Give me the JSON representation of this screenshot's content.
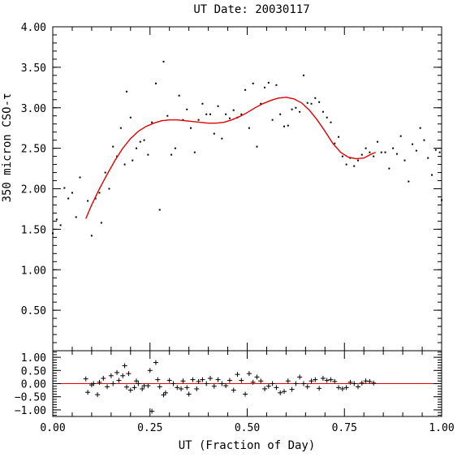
{
  "chart_data": [
    {
      "type": "scatter",
      "title": "UT Date: 20030117",
      "xlabel": "",
      "ylabel": "350 micron CSO-τ",
      "xlim": [
        0.0,
        1.0
      ],
      "ylim": [
        0.0,
        4.0
      ],
      "x_ticks": [
        "0.00",
        "0.25",
        "0.50",
        "0.75",
        "1.00"
      ],
      "y_ticks": [
        "0.50",
        "1.00",
        "1.50",
        "2.00",
        "2.50",
        "3.00",
        "3.50",
        "4.00"
      ],
      "grid": false,
      "colors": {
        "points": "#000000",
        "fit": "#e00000"
      },
      "series": [
        {
          "marker": "dot",
          "x": [
            0.0,
            0.01,
            0.02,
            0.03,
            0.04,
            0.05,
            0.06,
            0.07,
            0.09,
            0.1,
            0.11,
            0.12,
            0.125,
            0.135,
            0.145,
            0.155,
            0.165,
            0.175,
            0.185,
            0.19,
            0.2,
            0.205,
            0.215,
            0.225,
            0.235,
            0.245,
            0.255,
            0.265,
            0.275,
            0.285,
            0.295,
            0.305,
            0.315,
            0.325,
            0.335,
            0.345,
            0.355,
            0.365,
            0.375,
            0.385,
            0.395,
            0.405,
            0.415,
            0.425,
            0.435,
            0.445,
            0.455,
            0.465,
            0.475,
            0.485,
            0.495,
            0.505,
            0.515,
            0.525,
            0.535,
            0.545,
            0.555,
            0.565,
            0.575,
            0.585,
            0.595,
            0.605,
            0.615,
            0.625,
            0.635,
            0.645,
            0.655,
            0.665,
            0.675,
            0.685,
            0.695,
            0.705,
            0.715,
            0.725,
            0.735,
            0.745,
            0.755,
            0.765,
            0.775,
            0.785,
            0.795,
            0.805,
            0.815,
            0.825,
            0.835,
            0.845,
            0.855,
            0.865,
            0.875,
            0.885,
            0.895,
            0.905,
            0.915,
            0.925,
            0.935,
            0.945,
            0.955,
            0.965,
            0.975,
            0.985,
            0.995,
            1.0
          ],
          "y": [
            1.45,
            1.62,
            1.55,
            2.01,
            1.88,
            1.95,
            1.65,
            2.14,
            1.85,
            1.42,
            1.88,
            1.95,
            1.58,
            2.2,
            2.0,
            2.52,
            2.4,
            2.75,
            2.3,
            3.2,
            2.88,
            2.35,
            2.5,
            2.58,
            2.6,
            2.42,
            2.82,
            3.3,
            1.74,
            3.57,
            2.9,
            2.42,
            2.5,
            3.15,
            2.85,
            2.98,
            2.75,
            2.45,
            2.85,
            3.05,
            2.92,
            2.92,
            2.68,
            3.02,
            2.62,
            2.92,
            2.87,
            2.97,
            2.88,
            2.92,
            3.22,
            2.75,
            3.3,
            2.52,
            3.05,
            3.25,
            3.31,
            2.85,
            3.28,
            2.92,
            2.77,
            2.78,
            2.98,
            3.0,
            2.95,
            3.4,
            3.06,
            3.05,
            3.12,
            3.07,
            2.95,
            2.88,
            2.82,
            2.56,
            2.64,
            2.4,
            2.3,
            2.38,
            2.28,
            2.35,
            2.42,
            2.5,
            2.45,
            2.4,
            2.58,
            2.45,
            2.45,
            2.25,
            2.5,
            2.43,
            2.65,
            2.35,
            2.09,
            2.55,
            2.47,
            2.75,
            2.6,
            2.38,
            2.17,
            2.48,
            2.45,
            1.86
          ]
        },
        {
          "marker": "line",
          "x": [
            0.085,
            0.1,
            0.12,
            0.14,
            0.16,
            0.18,
            0.2,
            0.22,
            0.24,
            0.26,
            0.28,
            0.3,
            0.32,
            0.34,
            0.36,
            0.38,
            0.4,
            0.42,
            0.44,
            0.46,
            0.48,
            0.5,
            0.52,
            0.54,
            0.56,
            0.58,
            0.6,
            0.62,
            0.64,
            0.66,
            0.68,
            0.7,
            0.72,
            0.74,
            0.76,
            0.78,
            0.8,
            0.82,
            0.83
          ],
          "y": [
            1.63,
            1.8,
            2.0,
            2.18,
            2.35,
            2.5,
            2.62,
            2.71,
            2.77,
            2.81,
            2.84,
            2.85,
            2.85,
            2.84,
            2.83,
            2.82,
            2.81,
            2.81,
            2.82,
            2.85,
            2.89,
            2.94,
            3.0,
            3.05,
            3.09,
            3.12,
            3.13,
            3.11,
            3.06,
            2.97,
            2.85,
            2.71,
            2.56,
            2.45,
            2.39,
            2.37,
            2.38,
            2.43,
            2.45
          ]
        }
      ]
    },
    {
      "type": "scatter",
      "title": "",
      "xlabel": "UT (Fraction of Day)",
      "ylabel": "",
      "xlim": [
        0.0,
        1.0
      ],
      "ylim": [
        -1.25,
        1.25
      ],
      "x_ticks": [
        "0.00",
        "0.25",
        "0.50",
        "0.75",
        "1.00"
      ],
      "y_ticks": [
        "1.00",
        "0.50",
        "0.00",
        "−0.50",
        "−1.00"
      ],
      "grid": false,
      "colors": {
        "points": "#000000",
        "zero_line": "#e00000"
      },
      "reference_line_y": 0.0,
      "series": [
        {
          "marker": "plus",
          "x": [
            0.085,
            0.09,
            0.1,
            0.105,
            0.115,
            0.12,
            0.13,
            0.14,
            0.15,
            0.155,
            0.165,
            0.17,
            0.18,
            0.185,
            0.19,
            0.195,
            0.2,
            0.21,
            0.215,
            0.22,
            0.23,
            0.235,
            0.245,
            0.25,
            0.255,
            0.265,
            0.27,
            0.275,
            0.285,
            0.29,
            0.3,
            0.31,
            0.32,
            0.33,
            0.335,
            0.345,
            0.35,
            0.36,
            0.37,
            0.375,
            0.385,
            0.395,
            0.405,
            0.415,
            0.425,
            0.435,
            0.445,
            0.455,
            0.465,
            0.475,
            0.485,
            0.495,
            0.505,
            0.515,
            0.525,
            0.535,
            0.545,
            0.555,
            0.565,
            0.575,
            0.585,
            0.595,
            0.605,
            0.615,
            0.625,
            0.635,
            0.645,
            0.655,
            0.665,
            0.675,
            0.685,
            0.695,
            0.705,
            0.715,
            0.725,
            0.735,
            0.745,
            0.755,
            0.765,
            0.775,
            0.785,
            0.795,
            0.805,
            0.815,
            0.825
          ],
          "y": [
            0.18,
            -0.33,
            -0.05,
            0.0,
            -0.42,
            0.05,
            0.2,
            -0.12,
            0.3,
            0.0,
            0.42,
            0.12,
            0.3,
            0.68,
            -0.13,
            0.38,
            -0.25,
            -0.15,
            0.1,
            0.0,
            -0.2,
            -0.08,
            -0.08,
            0.5,
            -1.05,
            0.8,
            0.15,
            -0.12,
            -0.43,
            -0.35,
            0.12,
            0.0,
            -0.15,
            -0.2,
            0.1,
            -0.15,
            -0.4,
            0.15,
            -0.2,
            0.08,
            0.15,
            0.0,
            0.2,
            -0.1,
            0.15,
            0.0,
            -0.08,
            0.12,
            -0.25,
            0.35,
            0.12,
            -0.4,
            0.38,
            0.05,
            0.25,
            0.1,
            -0.2,
            -0.1,
            0.0,
            -0.15,
            -0.35,
            -0.3,
            0.1,
            -0.22,
            0.0,
            0.25,
            0.0,
            -0.12,
            0.1,
            0.15,
            -0.18,
            0.2,
            0.12,
            0.15,
            0.08,
            -0.15,
            -0.2,
            -0.15,
            0.05,
            0.0,
            -0.12,
            0.02,
            0.1,
            0.08,
            0.02
          ]
        }
      ]
    }
  ]
}
